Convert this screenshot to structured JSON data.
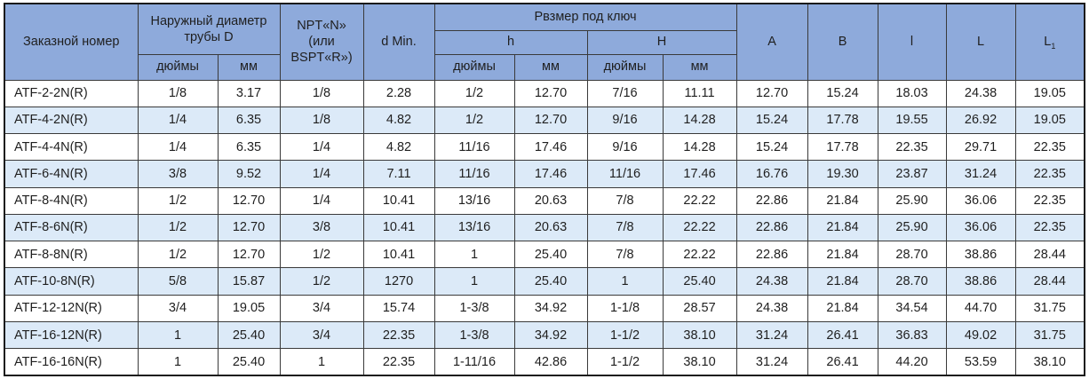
{
  "colors": {
    "header_bg": "#8EAADB",
    "stripe_bg": "#DCEAF8",
    "row_bg": "#FFFFFF",
    "border": "#3a3a3a",
    "text": "#1f1f1f"
  },
  "table": {
    "header": {
      "order_number": "Заказной номер",
      "outer_diameter": "Наружный диаметр трубы D",
      "inches_d": "дюймы",
      "mm_d": "мм",
      "npt": "NPT«N»\n(или\nBSPT«R»)",
      "d_min": "d Min.",
      "wrench_size": "Рвзмер под ключ",
      "h_lower": "h",
      "h_upper": "H",
      "inches_h": "дюймы",
      "mm_h": "мм",
      "inches_hh": "дюймы",
      "mm_hh": "мм",
      "col_a": "A",
      "col_b": "B",
      "col_l_small": "l",
      "col_l_big": "L",
      "col_l1_base": "L",
      "col_l1_sub": "1"
    },
    "rows": [
      [
        "ATF-2-2N(R)",
        "1/8",
        "3.17",
        "1/8",
        "2.28",
        "1/2",
        "12.70",
        "7/16",
        "11.11",
        "12.70",
        "15.24",
        "18.03",
        "24.38",
        "19.05"
      ],
      [
        "ATF-4-2N(R)",
        "1/4",
        "6.35",
        "1/8",
        "4.82",
        "1/2",
        "12.70",
        "9/16",
        "14.28",
        "15.24",
        "17.78",
        "19.55",
        "26.92",
        "19.05"
      ],
      [
        "ATF-4-4N(R)",
        "1/4",
        "6.35",
        "1/4",
        "4.82",
        "11/16",
        "17.46",
        "9/16",
        "14.28",
        "15.24",
        "17.78",
        "22.35",
        "29.71",
        "22.35"
      ],
      [
        "ATF-6-4N(R)",
        "3/8",
        "9.52",
        "1/4",
        "7.11",
        "11/16",
        "17.46",
        "11/16",
        "17.46",
        "16.76",
        "19.30",
        "23.87",
        "31.24",
        "22.35"
      ],
      [
        "ATF-8-4N(R)",
        "1/2",
        "12.70",
        "1/4",
        "10.41",
        "13/16",
        "20.63",
        "7/8",
        "22.22",
        "22.86",
        "21.84",
        "25.90",
        "36.06",
        "22.35"
      ],
      [
        "ATF-8-6N(R)",
        "1/2",
        "12.70",
        "3/8",
        "10.41",
        "13/16",
        "20.63",
        "7/8",
        "22.22",
        "22.86",
        "21.84",
        "25.90",
        "36.06",
        "22.35"
      ],
      [
        "ATF-8-8N(R)",
        "1/2",
        "12.70",
        "1/2",
        "10.41",
        "1",
        "25.40",
        "7/8",
        "22.22",
        "22.86",
        "21.84",
        "28.70",
        "38.86",
        "28.44"
      ],
      [
        "ATF-10-8N(R)",
        "5/8",
        "15.87",
        "1/2",
        "1270",
        "1",
        "25.40",
        "1",
        "25.40",
        "24.38",
        "21.84",
        "28.70",
        "38.86",
        "28.44"
      ],
      [
        "ATF-12-12N(R)",
        "3/4",
        "19.05",
        "3/4",
        "15.74",
        "1-3/8",
        "34.92",
        "1-1/8",
        "28.57",
        "24.38",
        "21.84",
        "34.54",
        "44.70",
        "31.75"
      ],
      [
        "ATF-16-12N(R)",
        "1",
        "25.40",
        "3/4",
        "22.35",
        "1-3/8",
        "34.92",
        "1-1/2",
        "38.10",
        "31.24",
        "26.41",
        "36.83",
        "49.02",
        "31.75"
      ],
      [
        "ATF-16-16N(R)",
        "1",
        "25.40",
        "1",
        "22.35",
        "1-11/16",
        "42.86",
        "1-1/2",
        "38.10",
        "31.24",
        "26.41",
        "44.20",
        "53.59",
        "38.10"
      ]
    ]
  }
}
